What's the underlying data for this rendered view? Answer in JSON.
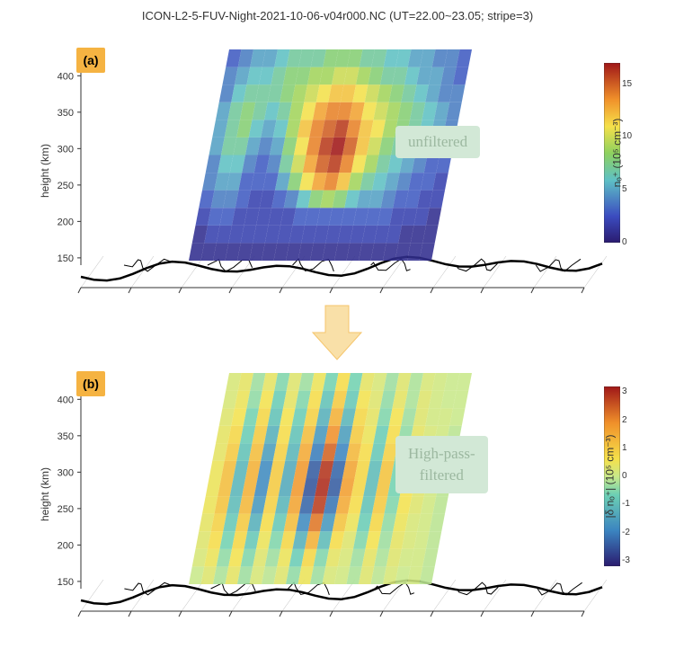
{
  "title": "ICON-L2-5-FUV-Night-2021-10-06-v04r000.NC (UT=22.00~23.05; stripe=3)",
  "panels": {
    "a": {
      "badge": "(a)",
      "filter_label": "unfiltered",
      "filter_bg": "#d2e8d6"
    },
    "b": {
      "badge": "(b)",
      "filter_label": "High-pass-\nfiltered",
      "filter_bg": "#d2e8d6"
    }
  },
  "yaxis": {
    "label": "height (km)",
    "ticks": [
      150,
      200,
      250,
      300,
      350,
      400
    ],
    "min": 140,
    "max": 430
  },
  "colorbar_a": {
    "label": "nₒ⁺ (10⁵ cm⁻³)",
    "ticks": [
      0,
      5,
      10,
      15
    ],
    "min": 0,
    "max": 17,
    "stops": [
      {
        "p": 0,
        "c": "#2a1a6e"
      },
      {
        "p": 0.15,
        "c": "#3b4cc0"
      },
      {
        "p": 0.35,
        "c": "#5ec0c5"
      },
      {
        "p": 0.5,
        "c": "#8ed15f"
      },
      {
        "p": 0.65,
        "c": "#f5e04a"
      },
      {
        "p": 0.8,
        "c": "#f0902a"
      },
      {
        "p": 1,
        "c": "#a01818"
      }
    ]
  },
  "colorbar_b": {
    "label": "|δ nₒ⁺| (10⁵ cm⁻³)",
    "ticks": [
      -3,
      -2,
      -1,
      0,
      1,
      2,
      3
    ],
    "min": -3.2,
    "max": 3.2,
    "stops": [
      {
        "p": 0,
        "c": "#2a1a6e"
      },
      {
        "p": 0.2,
        "c": "#3b84c0"
      },
      {
        "p": 0.4,
        "c": "#6cd0b4"
      },
      {
        "p": 0.5,
        "c": "#c8e88a"
      },
      {
        "p": 0.6,
        "c": "#f5e04a"
      },
      {
        "p": 0.8,
        "c": "#f0902a"
      },
      {
        "p": 1,
        "c": "#a01818"
      }
    ]
  },
  "arrow": {
    "fill": "#f9e0a8",
    "stroke": "#f5c56b"
  },
  "map": {
    "stroke": "#000000",
    "stroke_width": 2.5,
    "grid_color": "#aaaaaa"
  },
  "data_slab_a": {
    "comment": "approximate 2D field of nO+ density, cols=longitude slices, rows=height slices bottom→top",
    "rows": 12,
    "cols": 20,
    "values": [
      [
        1,
        1,
        1,
        1,
        1,
        1,
        1,
        1,
        1,
        1,
        1,
        1,
        1,
        1,
        1,
        1,
        1,
        1,
        1,
        1
      ],
      [
        1,
        2,
        2,
        2,
        2,
        2,
        2,
        2,
        2,
        2,
        2,
        2,
        2,
        2,
        2,
        2,
        2,
        1,
        1,
        1
      ],
      [
        2,
        3,
        3,
        2,
        2,
        2,
        2,
        2,
        3,
        3,
        3,
        3,
        3,
        3,
        3,
        3,
        2,
        2,
        2,
        1
      ],
      [
        3,
        4,
        4,
        3,
        2,
        2,
        3,
        4,
        6,
        8,
        9,
        8,
        6,
        5,
        5,
        4,
        3,
        3,
        2,
        2
      ],
      [
        4,
        5,
        5,
        3,
        3,
        3,
        5,
        8,
        11,
        13,
        14,
        12,
        9,
        7,
        6,
        5,
        4,
        3,
        3,
        2
      ],
      [
        4,
        6,
        6,
        4,
        3,
        4,
        7,
        10,
        13,
        15,
        16,
        14,
        11,
        9,
        7,
        6,
        5,
        4,
        3,
        3
      ],
      [
        5,
        7,
        7,
        5,
        4,
        5,
        8,
        11,
        14,
        16,
        17,
        15,
        12,
        10,
        8,
        7,
        6,
        5,
        4,
        3
      ],
      [
        5,
        7,
        8,
        6,
        5,
        6,
        9,
        12,
        14,
        15,
        16,
        14,
        12,
        11,
        9,
        8,
        7,
        6,
        5,
        4
      ],
      [
        5,
        7,
        8,
        7,
        6,
        7,
        9,
        11,
        13,
        14,
        14,
        13,
        11,
        10,
        9,
        8,
        7,
        6,
        5,
        4
      ],
      [
        4,
        6,
        7,
        7,
        7,
        8,
        9,
        10,
        11,
        12,
        12,
        11,
        10,
        9,
        8,
        7,
        6,
        5,
        4,
        4
      ],
      [
        4,
        5,
        6,
        6,
        7,
        8,
        8,
        9,
        9,
        10,
        10,
        9,
        8,
        7,
        7,
        6,
        5,
        5,
        4,
        3
      ],
      [
        3,
        4,
        5,
        5,
        6,
        7,
        7,
        7,
        8,
        8,
        8,
        7,
        7,
        6,
        6,
        5,
        5,
        4,
        4,
        3
      ]
    ]
  },
  "data_slab_b": {
    "rows": 12,
    "cols": 20,
    "values": [
      [
        0,
        0.3,
        -0.2,
        0.4,
        -0.3,
        0.2,
        -0.1,
        0.3,
        -0.4,
        0.5,
        -0.3,
        0.2,
        0.1,
        -0.2,
        0.3,
        -0.1,
        0.2,
        0,
        0.1,
        -0.1
      ],
      [
        0.2,
        0.5,
        -0.4,
        0.6,
        -0.5,
        0.3,
        -0.3,
        0.5,
        -0.7,
        0.8,
        -0.5,
        0.4,
        0.2,
        -0.3,
        0.4,
        -0.2,
        0.3,
        0.1,
        0.1,
        -0.1
      ],
      [
        0.3,
        0.7,
        -0.6,
        0.8,
        -0.8,
        0.5,
        -0.5,
        0.8,
        -1.2,
        1.4,
        -1.0,
        0.7,
        0.3,
        -0.5,
        0.6,
        -0.3,
        0.4,
        0.2,
        0.1,
        -0.1
      ],
      [
        0.4,
        0.9,
        -0.8,
        1.0,
        -1.2,
        0.7,
        -0.8,
        1.2,
        -1.8,
        2.2,
        -1.6,
        1.1,
        0.5,
        -0.7,
        0.8,
        -0.4,
        0.5,
        0.2,
        0.1,
        -0.1
      ],
      [
        0.5,
        1.1,
        -1.0,
        1.3,
        -1.6,
        0.9,
        -1.1,
        1.6,
        -2.3,
        2.8,
        -2.1,
        1.5,
        0.7,
        -0.9,
        1.0,
        -0.5,
        0.6,
        0.3,
        0.1,
        -0.1
      ],
      [
        0.5,
        1.2,
        -1.1,
        1.4,
        -1.8,
        1.0,
        -1.3,
        1.8,
        -2.5,
        3.0,
        -2.4,
        1.7,
        0.8,
        -1.0,
        1.1,
        -0.6,
        0.6,
        0.3,
        0.1,
        -0.1
      ],
      [
        0.5,
        1.2,
        -1.1,
        1.4,
        -1.8,
        1.0,
        -1.3,
        1.8,
        -2.4,
        2.9,
        -2.3,
        1.6,
        0.8,
        -1.0,
        1.1,
        -0.6,
        0.6,
        0.3,
        0.1,
        -0.1
      ],
      [
        0.4,
        1.0,
        -0.9,
        1.2,
        -1.5,
        0.9,
        -1.1,
        1.5,
        -2.0,
        2.4,
        -1.9,
        1.3,
        0.7,
        -0.8,
        0.9,
        -0.5,
        0.5,
        0.2,
        0.1,
        -0.1
      ],
      [
        0.4,
        0.8,
        -0.7,
        1.0,
        -1.2,
        0.7,
        -0.9,
        1.2,
        -1.6,
        1.9,
        -1.5,
        1.0,
        0.5,
        -0.7,
        0.7,
        -0.4,
        0.4,
        0.2,
        0.1,
        -0.1
      ],
      [
        0.3,
        0.6,
        -0.6,
        0.8,
        -0.9,
        0.6,
        -0.7,
        0.9,
        -1.2,
        1.4,
        -1.1,
        0.8,
        0.4,
        -0.5,
        0.6,
        -0.3,
        0.3,
        0.1,
        0.1,
        0
      ],
      [
        0.2,
        0.5,
        -0.4,
        0.6,
        -0.7,
        0.4,
        -0.5,
        0.7,
        -0.9,
        1.0,
        -0.8,
        0.6,
        0.3,
        -0.4,
        0.4,
        -0.2,
        0.3,
        0.1,
        0,
        0
      ],
      [
        0.2,
        0.4,
        -0.3,
        0.4,
        -0.5,
        0.3,
        -0.3,
        0.5,
        -0.6,
        0.7,
        -0.6,
        0.4,
        0.2,
        -0.3,
        0.3,
        -0.2,
        0.2,
        0.1,
        0,
        0
      ]
    ]
  }
}
